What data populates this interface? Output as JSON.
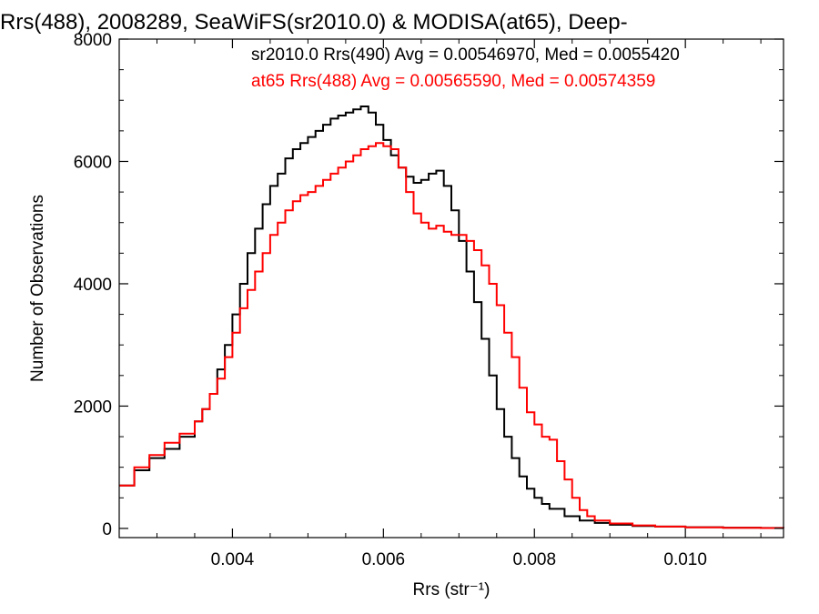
{
  "chart_data": {
    "type": "line",
    "title": "Rrs(488), 2008289, SeaWiFS(sr2010.0) & MODISA(at65), Deep-",
    "xlabel": "Rrs (str⁻¹)",
    "ylabel": "Number of Observations",
    "xlim": [
      0.0025,
      0.0113
    ],
    "ylim": [
      -150,
      8000
    ],
    "xticks": [
      0.004,
      0.006,
      0.008,
      0.01
    ],
    "xtick_labels": [
      "0.004",
      "0.006",
      "0.008",
      "0.010"
    ],
    "yticks": [
      0,
      2000,
      4000,
      6000,
      8000
    ],
    "ytick_labels": [
      "0",
      "2000",
      "4000",
      "6000",
      "8000"
    ],
    "grid": false,
    "step": true,
    "legend": {
      "position": "top-right",
      "entries": [
        {
          "text": "sr2010.0 Rrs(490) Avg = 0.00546970, Med = 0.0055420",
          "color": "#000000"
        },
        {
          "text": "at65 Rrs(488) Avg = 0.00565590, Med = 0.00574359",
          "color": "#ff0000"
        }
      ]
    },
    "series": [
      {
        "color": "#000000",
        "x": [
          0.0025,
          0.0027,
          0.0029,
          0.0031,
          0.0033,
          0.0035,
          0.0036,
          0.0037,
          0.0038,
          0.0039,
          0.004,
          0.0041,
          0.0042,
          0.0043,
          0.0044,
          0.0045,
          0.0046,
          0.0047,
          0.0048,
          0.0049,
          0.005,
          0.0051,
          0.0052,
          0.0053,
          0.0054,
          0.0055,
          0.0056,
          0.0057,
          0.0058,
          0.0059,
          0.006,
          0.0061,
          0.0062,
          0.0063,
          0.0064,
          0.0065,
          0.0066,
          0.0067,
          0.0068,
          0.0069,
          0.007,
          0.0071,
          0.0072,
          0.0073,
          0.0074,
          0.0075,
          0.0076,
          0.0077,
          0.0078,
          0.0079,
          0.008,
          0.0081,
          0.0082,
          0.0084,
          0.0086,
          0.0088,
          0.009,
          0.0093,
          0.0096,
          0.01,
          0.0105,
          0.011,
          0.0113
        ],
        "y": [
          700,
          950,
          1150,
          1300,
          1500,
          1750,
          1950,
          2200,
          2600,
          3000,
          3500,
          4000,
          4500,
          4900,
          5300,
          5600,
          5800,
          6050,
          6200,
          6300,
          6400,
          6500,
          6600,
          6700,
          6750,
          6800,
          6850,
          6900,
          6800,
          6600,
          6350,
          6100,
          5900,
          5750,
          5650,
          5700,
          5800,
          5850,
          5600,
          5200,
          4700,
          4200,
          3700,
          3100,
          2500,
          1950,
          1500,
          1150,
          850,
          650,
          500,
          400,
          320,
          200,
          130,
          90,
          60,
          40,
          30,
          20,
          12,
          8,
          5
        ]
      },
      {
        "color": "#ff0000",
        "x": [
          0.0025,
          0.0027,
          0.0029,
          0.0031,
          0.0033,
          0.0035,
          0.0036,
          0.0037,
          0.0038,
          0.0039,
          0.004,
          0.0041,
          0.0042,
          0.0043,
          0.0044,
          0.0045,
          0.0046,
          0.0047,
          0.0048,
          0.0049,
          0.005,
          0.0051,
          0.0052,
          0.0053,
          0.0054,
          0.0055,
          0.0056,
          0.0057,
          0.0058,
          0.0059,
          0.006,
          0.0061,
          0.0062,
          0.0063,
          0.0064,
          0.0065,
          0.0066,
          0.0067,
          0.0068,
          0.0069,
          0.007,
          0.0071,
          0.0072,
          0.0073,
          0.0074,
          0.0075,
          0.0076,
          0.0077,
          0.0078,
          0.0079,
          0.008,
          0.0081,
          0.0082,
          0.0083,
          0.0084,
          0.0085,
          0.0086,
          0.0087,
          0.0088,
          0.009,
          0.0093,
          0.0096,
          0.01,
          0.0105,
          0.011,
          0.0113
        ],
        "y": [
          700,
          1000,
          1200,
          1400,
          1550,
          1750,
          1950,
          2200,
          2450,
          2800,
          3200,
          3600,
          3900,
          4200,
          4500,
          4800,
          5000,
          5200,
          5350,
          5450,
          5500,
          5600,
          5700,
          5800,
          5900,
          6000,
          6100,
          6200,
          6250,
          6300,
          6250,
          6200,
          5900,
          5500,
          5150,
          5000,
          4900,
          4950,
          4850,
          4800,
          4800,
          4700,
          4550,
          4300,
          4000,
          3650,
          3200,
          2800,
          2300,
          1900,
          1700,
          1500,
          1450,
          1100,
          800,
          500,
          300,
          200,
          130,
          80,
          50,
          30,
          18,
          10,
          6,
          4
        ]
      }
    ]
  }
}
